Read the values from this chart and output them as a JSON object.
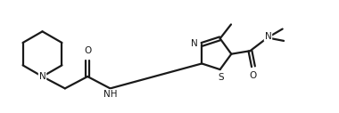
{
  "bg_color": "#ffffff",
  "line_color": "#1a1a1a",
  "line_width": 1.6,
  "font_size": 7.5,
  "figsize": [
    3.8,
    1.27
  ],
  "dpi": 100,
  "xlim": [
    0.0,
    10.8
  ],
  "ylim": [
    0.5,
    3.5
  ]
}
